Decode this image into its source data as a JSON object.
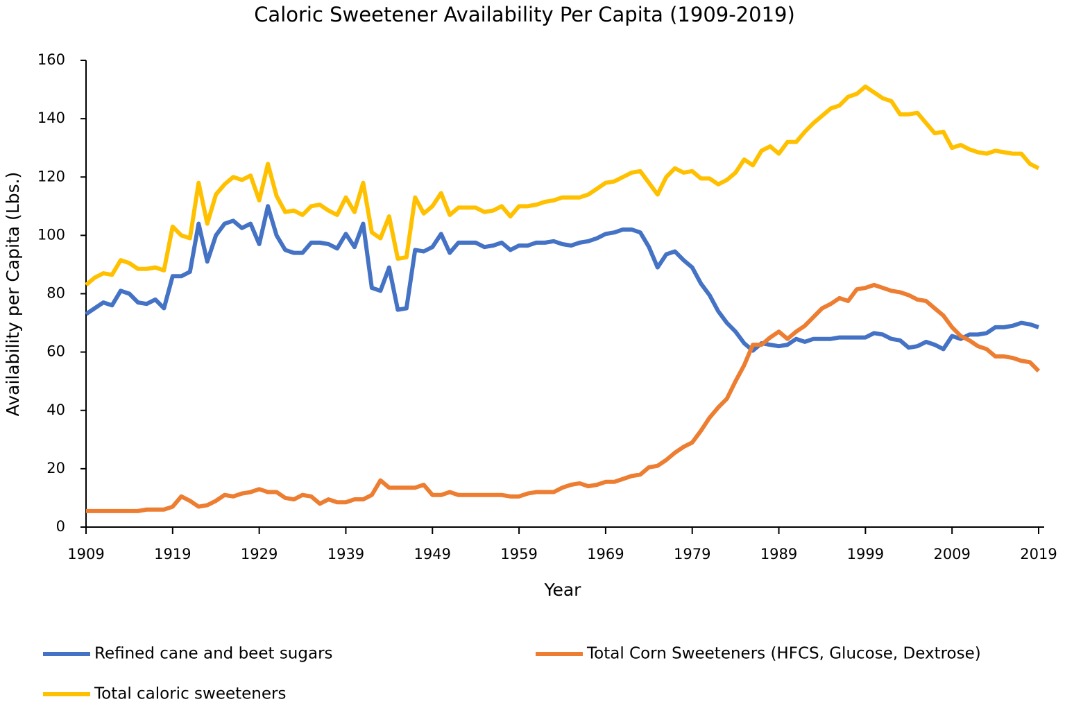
{
  "chart_data": {
    "type": "line",
    "title": "Caloric Sweetener Availability Per Capita (1909-2019)",
    "x_label": "Year",
    "y_label": "Availability per Capita (Lbs.)",
    "x": [
      1909,
      1910,
      1911,
      1912,
      1913,
      1914,
      1915,
      1916,
      1917,
      1918,
      1919,
      1920,
      1921,
      1922,
      1923,
      1924,
      1925,
      1926,
      1927,
      1928,
      1929,
      1930,
      1931,
      1932,
      1933,
      1934,
      1935,
      1936,
      1937,
      1938,
      1939,
      1940,
      1941,
      1942,
      1943,
      1944,
      1945,
      1946,
      1947,
      1948,
      1949,
      1950,
      1951,
      1952,
      1953,
      1954,
      1955,
      1956,
      1957,
      1958,
      1959,
      1960,
      1961,
      1962,
      1963,
      1964,
      1965,
      1966,
      1967,
      1968,
      1969,
      1970,
      1971,
      1972,
      1973,
      1974,
      1975,
      1976,
      1977,
      1978,
      1979,
      1980,
      1981,
      1982,
      1983,
      1984,
      1985,
      1986,
      1987,
      1988,
      1989,
      1990,
      1991,
      1992,
      1993,
      1994,
      1995,
      1996,
      1997,
      1998,
      1999,
      2000,
      2001,
      2002,
      2003,
      2004,
      2005,
      2006,
      2007,
      2008,
      2009,
      2010,
      2011,
      2012,
      2013,
      2014,
      2015,
      2016,
      2017,
      2018,
      2019
    ],
    "series": [
      {
        "name": "Refined cane and beet sugars",
        "color": "#4472c4",
        "values": [
          73,
          75,
          77,
          76,
          81,
          80,
          77,
          76.5,
          78,
          75,
          86,
          86,
          87.5,
          104,
          91,
          100,
          104,
          105,
          102.5,
          104,
          97,
          110,
          100,
          95,
          94,
          94,
          97.5,
          97.5,
          97,
          95.5,
          100.5,
          96,
          104,
          82,
          81,
          89,
          74.5,
          75,
          95,
          94.5,
          96,
          100.5,
          94,
          97.5,
          97.5,
          97.5,
          96,
          96.5,
          97.5,
          95,
          96.5,
          96.5,
          97.5,
          97.5,
          98,
          97,
          96.5,
          97.5,
          98,
          99,
          100.5,
          101,
          102,
          102,
          101,
          96,
          89,
          93.5,
          94.5,
          91.5,
          89,
          83.5,
          79.5,
          74,
          70,
          67,
          63,
          60.5,
          63,
          62.5,
          62,
          62.5,
          64.5,
          63.5,
          64.5,
          64.5,
          64.5,
          65,
          65,
          65,
          65,
          66.5,
          66,
          64.5,
          64,
          61.5,
          62,
          63.5,
          62.5,
          61,
          65.5,
          64.5,
          66,
          66,
          66.5,
          68.5,
          68.5,
          69,
          70,
          69.5,
          68.5
        ]
      },
      {
        "name": "Total Corn Sweeteners (HFCS, Glucose, Dextrose)",
        "color": "#ed7d31",
        "values": [
          5.5,
          5.5,
          5.5,
          5.5,
          5.5,
          5.5,
          5.5,
          6,
          6,
          6,
          7,
          10.5,
          9,
          7,
          7.5,
          9,
          11,
          10.5,
          11.5,
          12,
          13,
          12,
          12,
          10,
          9.5,
          11,
          10.5,
          8,
          9.5,
          8.5,
          8.5,
          9.5,
          9.5,
          11,
          16,
          13.5,
          13.5,
          13.5,
          13.5,
          14.5,
          11,
          11,
          12,
          11,
          11,
          11,
          11,
          11,
          11,
          10.5,
          10.5,
          11.5,
          12,
          12,
          12,
          13.5,
          14.5,
          15,
          14,
          14.5,
          15.5,
          15.5,
          16.5,
          17.5,
          18,
          20.5,
          21,
          23,
          25.5,
          27.5,
          29,
          33,
          37.5,
          41,
          44,
          50,
          55.5,
          62.5,
          62.5,
          65,
          67,
          64.5,
          67,
          69,
          72,
          75,
          76.5,
          78.5,
          77.5,
          81.5,
          82,
          83,
          82,
          81,
          80.5,
          79.5,
          78,
          77.5,
          75,
          72.5,
          68.5,
          65.5,
          64,
          62,
          61,
          58.5,
          58.5,
          58,
          57,
          56.5,
          53.5
        ]
      },
      {
        "name": "Total caloric sweeteners",
        "color": "#ffc000",
        "values": [
          83,
          85.5,
          87,
          86.5,
          91.5,
          90.5,
          88.5,
          88.5,
          89,
          88,
          103,
          100,
          99,
          118,
          104,
          114,
          117.5,
          120,
          119,
          120.5,
          112,
          124.5,
          113.5,
          108,
          108.5,
          107,
          110,
          110.5,
          108.5,
          107,
          113,
          108,
          118,
          101,
          99,
          106.5,
          92,
          92.5,
          113,
          107.5,
          110,
          114.5,
          107,
          109.5,
          109.5,
          109.5,
          108,
          108.5,
          110,
          106.5,
          110,
          110,
          110.5,
          111.5,
          112,
          113,
          113,
          113,
          114,
          116,
          118,
          118.5,
          120,
          121.5,
          122,
          118,
          114,
          120,
          123,
          121.5,
          122,
          119.5,
          119.5,
          117.5,
          119,
          121.5,
          126,
          124,
          129,
          130.5,
          128,
          132,
          132,
          135.5,
          138.5,
          141,
          143.5,
          144.5,
          147.5,
          148.5,
          151,
          149,
          147,
          146,
          141.5,
          141.5,
          142,
          138.5,
          135,
          135.5,
          130,
          131,
          129.5,
          128.5,
          128,
          129,
          128.5,
          128,
          128,
          124.5,
          123
        ]
      }
    ],
    "xlim": [
      1909,
      2019
    ],
    "xticks": [
      1909,
      1919,
      1929,
      1939,
      1949,
      1959,
      1969,
      1979,
      1989,
      1999,
      2009,
      2019
    ],
    "ylim": [
      0,
      160
    ],
    "yticks": [
      0,
      20,
      40,
      60,
      80,
      100,
      120,
      140,
      160
    ],
    "grid": false,
    "legend": "bottom"
  }
}
